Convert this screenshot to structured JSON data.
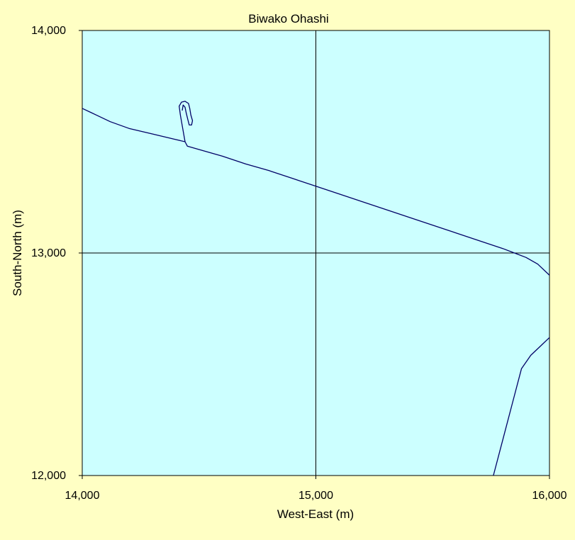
{
  "chart_data": {
    "type": "line",
    "title": "Biwako Ohashi",
    "xlabel": "West-East (m)",
    "ylabel": "South-North (m)",
    "xlim": [
      14000,
      16000
    ],
    "ylim": [
      12000,
      14000
    ],
    "x_ticks": [
      "14,000",
      "15,000",
      "16,000"
    ],
    "y_ticks": [
      "12,000",
      "13,000",
      "14,000"
    ],
    "grid": true,
    "legend": "none",
    "colors": {
      "background": "#ffffc4",
      "plot_area": "#ccffff",
      "line": "#000066",
      "grid": "#000000"
    },
    "series": [
      {
        "points": [
          [
            14000,
            13650
          ],
          [
            14060,
            13620
          ],
          [
            14120,
            13590
          ],
          [
            14200,
            13560
          ],
          [
            14300,
            13535
          ],
          [
            14400,
            13510
          ],
          [
            14440,
            13500
          ],
          [
            14450,
            13480
          ],
          [
            14500,
            13465
          ],
          [
            14600,
            13435
          ],
          [
            14700,
            13400
          ],
          [
            14800,
            13370
          ],
          [
            14900,
            13335
          ],
          [
            15000,
            13300
          ],
          [
            15100,
            13265
          ],
          [
            15200,
            13230
          ],
          [
            15300,
            13195
          ],
          [
            15400,
            13160
          ],
          [
            15500,
            13125
          ],
          [
            15600,
            13090
          ],
          [
            15700,
            13055
          ],
          [
            15800,
            13020
          ],
          [
            15850,
            13000
          ],
          [
            15900,
            12980
          ],
          [
            15950,
            12950
          ],
          [
            16000,
            12900
          ]
        ]
      },
      {
        "points": [
          [
            14440,
            13500
          ],
          [
            14430,
            13560
          ],
          [
            14420,
            13620
          ],
          [
            14415,
            13660
          ],
          [
            14425,
            13678
          ],
          [
            14440,
            13682
          ],
          [
            14455,
            13672
          ],
          [
            14460,
            13650
          ],
          [
            14465,
            13620
          ],
          [
            14472,
            13595
          ],
          [
            14468,
            13575
          ],
          [
            14458,
            13575
          ],
          [
            14452,
            13600
          ],
          [
            14445,
            13630
          ],
          [
            14440,
            13655
          ],
          [
            14432,
            13665
          ],
          [
            14428,
            13640
          ]
        ]
      },
      {
        "points": [
          [
            15760,
            12000
          ],
          [
            15800,
            12160
          ],
          [
            15840,
            12320
          ],
          [
            15880,
            12480
          ],
          [
            15920,
            12540
          ],
          [
            15960,
            12580
          ],
          [
            16000,
            12620
          ]
        ]
      }
    ]
  }
}
